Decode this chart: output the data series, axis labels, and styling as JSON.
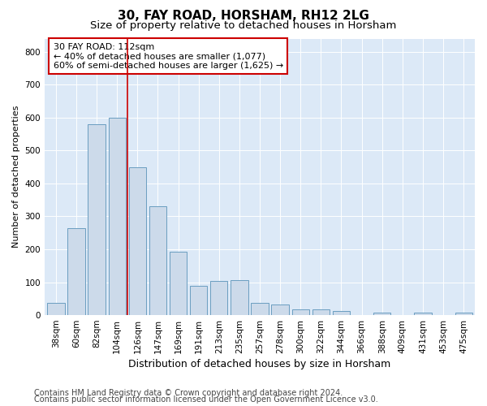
{
  "title1": "30, FAY ROAD, HORSHAM, RH12 2LG",
  "title2": "Size of property relative to detached houses in Horsham",
  "xlabel": "Distribution of detached houses by size in Horsham",
  "ylabel": "Number of detached properties",
  "bar_categories": [
    "38sqm",
    "60sqm",
    "82sqm",
    "104sqm",
    "126sqm",
    "147sqm",
    "169sqm",
    "191sqm",
    "213sqm",
    "235sqm",
    "257sqm",
    "278sqm",
    "300sqm",
    "322sqm",
    "344sqm",
    "366sqm",
    "388sqm",
    "409sqm",
    "431sqm",
    "453sqm",
    "475sqm"
  ],
  "bar_values": [
    38,
    263,
    580,
    600,
    450,
    330,
    193,
    90,
    103,
    105,
    37,
    32,
    18,
    17,
    12,
    0,
    7,
    0,
    8,
    0,
    8
  ],
  "bar_color": "#ccdaea",
  "bar_edge_color": "#6a9dc0",
  "vline_x": 3.5,
  "vline_color": "#cc0000",
  "annotation_text": "30 FAY ROAD: 112sqm\n← 40% of detached houses are smaller (1,077)\n60% of semi-detached houses are larger (1,625) →",
  "annotation_box_color": "#ffffff",
  "annotation_box_edge": "#cc0000",
  "ylim": [
    0,
    840
  ],
  "yticks": [
    0,
    100,
    200,
    300,
    400,
    500,
    600,
    700,
    800
  ],
  "plot_bg_color": "#dce9f7",
  "footer1": "Contains HM Land Registry data © Crown copyright and database right 2024.",
  "footer2": "Contains public sector information licensed under the Open Government Licence v3.0.",
  "title1_fontsize": 11,
  "title2_fontsize": 9.5,
  "xlabel_fontsize": 9,
  "ylabel_fontsize": 8,
  "tick_fontsize": 7.5,
  "footer_fontsize": 7,
  "annotation_fontsize": 8
}
